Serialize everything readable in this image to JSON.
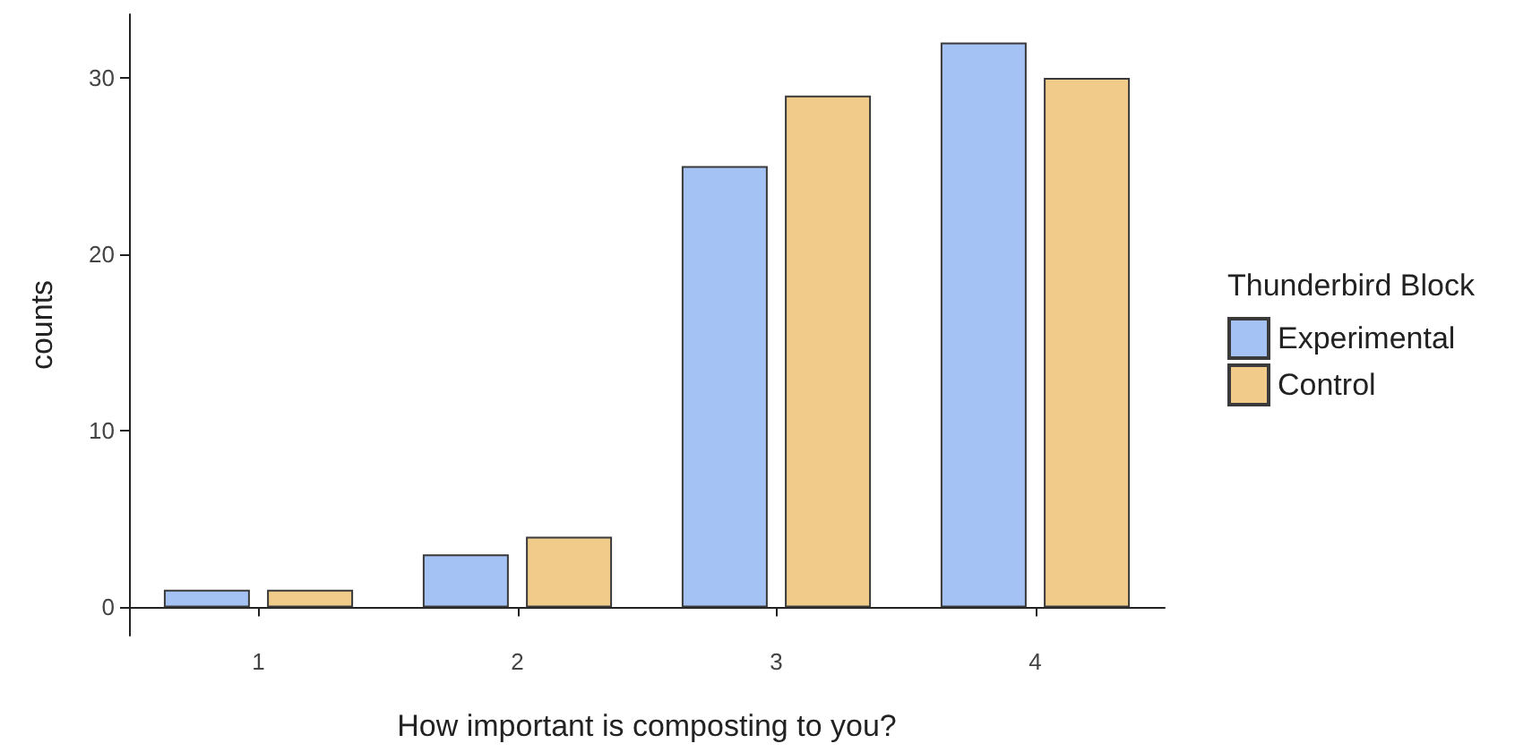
{
  "chart_data": {
    "type": "bar",
    "xlabel": "How important is composting to you?",
    "ylabel": "counts",
    "legend_title": "Thunderbird Block",
    "categories": [
      "1",
      "2",
      "3",
      "4"
    ],
    "series": [
      {
        "name": "Experimental",
        "color": "#a4c2f4",
        "values": [
          1,
          3,
          25,
          32
        ]
      },
      {
        "name": "Control",
        "color": "#f0cb8a",
        "values": [
          1,
          4,
          29,
          30
        ]
      }
    ],
    "ylim": [
      -1.6,
      33.6
    ],
    "yticks": [
      0,
      10,
      20,
      30
    ],
    "grid": false,
    "legend": "right"
  }
}
